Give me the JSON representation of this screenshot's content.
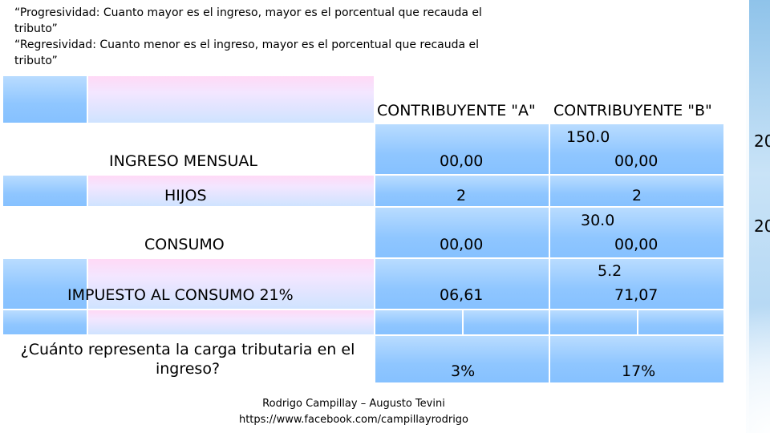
{
  "intro": {
    "line1": "“Progresividad: Cuanto mayor es el ingreso, mayor es el porcentual que recauda el",
    "line2": "tributo”",
    "line3": "“Regresividad: Cuanto menor es el ingreso, mayor es el porcentual que recauda el",
    "line4": "tributo”"
  },
  "table": {
    "headers": {
      "a": "CONTRIBUYENTE \"A\"",
      "b": "CONTRIBUYENTE \"B\""
    },
    "rows": [
      {
        "label": "INGRESO MENSUAL",
        "a": "00,00",
        "b_top": "150.0",
        "b_bottom": "00,00"
      },
      {
        "label": "HIJOS",
        "a": "2",
        "b": "2"
      },
      {
        "label": "CONSUMO",
        "a": "00,00",
        "b_top": "30.0",
        "b_bottom": "00,00"
      },
      {
        "label": "IMPUESTO AL CONSUMO 21%",
        "a": "06,61",
        "b_top": "5.2",
        "b_bottom": "71,07"
      }
    ],
    "question": {
      "label_line1": "¿Cuánto representa la carga tributaria en el",
      "label_line2": "ingreso?",
      "a": "3%",
      "b": "17%"
    }
  },
  "side": {
    "num1": "20",
    "num2": "20"
  },
  "footer": {
    "authors": "Rodrigo Campillay – Augusto Tevini",
    "url": "https://www.facebook.com/campillayrodrigo"
  }
}
